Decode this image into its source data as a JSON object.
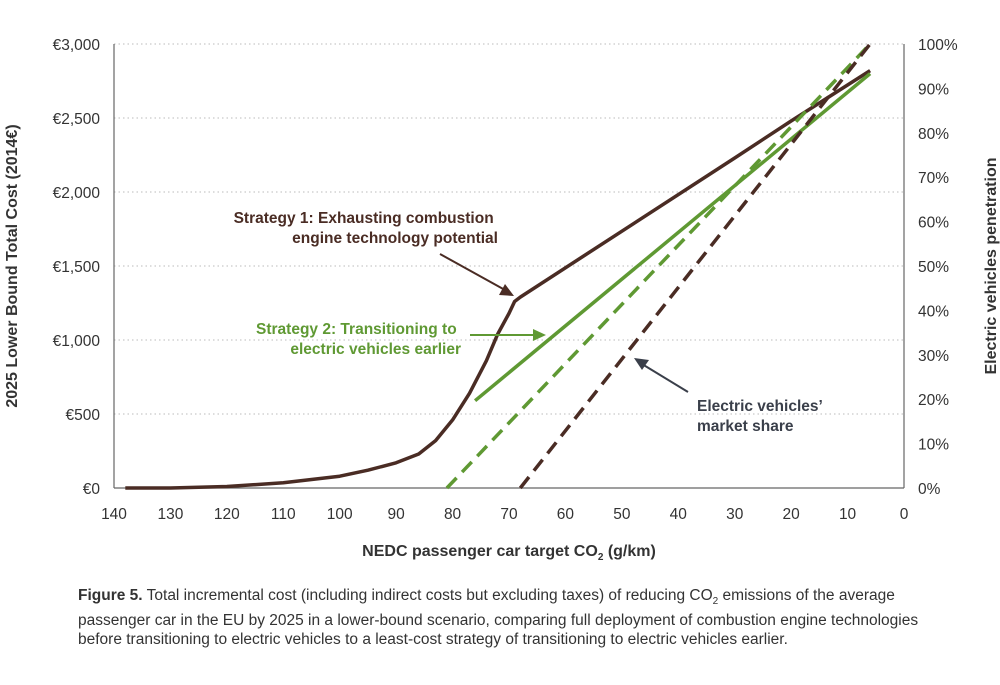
{
  "chart_data": {
    "type": "line",
    "xlabel": "NEDC passenger car target CO",
    "xlabel_sub": "2",
    "xlabel_tail": " (g/km)",
    "ylabel_left": "2025 Lower Bound Total Cost (2014€)",
    "ylabel_right": "Electric vehicles penetration",
    "x_ticks": [
      "140",
      "130",
      "120",
      "110",
      "100",
      "90",
      "80",
      "70",
      "60",
      "50",
      "40",
      "30",
      "20",
      "10",
      "0"
    ],
    "x_reversed": true,
    "xlim": [
      140,
      0
    ],
    "y_left_ticks": [
      "€0",
      "€500",
      "€1,000",
      "€1,500",
      "€2,000",
      "€2,500",
      "€3,000"
    ],
    "y_left_lim": [
      0,
      3000
    ],
    "y_right_ticks": [
      "0%",
      "10%",
      "20%",
      "30%",
      "40%",
      "50%",
      "60%",
      "70%",
      "80%",
      "90%",
      "100%"
    ],
    "y_right_lim": [
      0,
      100
    ],
    "grid": "horizontal dotted",
    "series": [
      {
        "axis": "left",
        "style": "solid",
        "color": "#4a2c24",
        "x": [
          138,
          130,
          120,
          110,
          100,
          95,
          90,
          86,
          83,
          80,
          77,
          74,
          72,
          70,
          69,
          68,
          30,
          20,
          6
        ],
        "y": [
          0,
          0,
          10,
          35,
          80,
          120,
          170,
          230,
          320,
          460,
          640,
          860,
          1040,
          1180,
          1260,
          1290,
          2230,
          2480,
          2820
        ]
      },
      {
        "axis": "left",
        "style": "solid",
        "color": "#5f9933",
        "x": [
          76,
          6
        ],
        "y": [
          590,
          2800
        ]
      },
      {
        "axis": "right",
        "style": "dashed",
        "color": "#5f9933",
        "x": [
          81,
          6
        ],
        "y": [
          0,
          100
        ]
      },
      {
        "axis": "right",
        "style": "dashed",
        "color": "#4a2c24",
        "x": [
          68,
          6
        ],
        "y": [
          0,
          100
        ]
      }
    ],
    "annotations": [
      {
        "lines": [
          "Strategy 1: Exhausting combustion",
          "engine technology potential"
        ],
        "color": "#4a2c24"
      },
      {
        "lines": [
          "Strategy 2: Transitioning to",
          "electric vehicles earlier"
        ],
        "color": "#5f9933"
      },
      {
        "lines": [
          "Electric vehicles’",
          "market share"
        ],
        "color": "#3a3f4a"
      }
    ]
  },
  "caption": {
    "label": "Figure 5.",
    "text_1": " Total incremental cost (including indirect costs but excluding taxes) of reducing CO",
    "sub": "2",
    "text_2": " emissions of the average passenger car in the EU by 2025 in a lower-bound scenario, comparing full deployment of combustion engine technologies before transitioning to electric vehicles to a least-cost strategy of transitioning to electric vehicles earlier."
  }
}
